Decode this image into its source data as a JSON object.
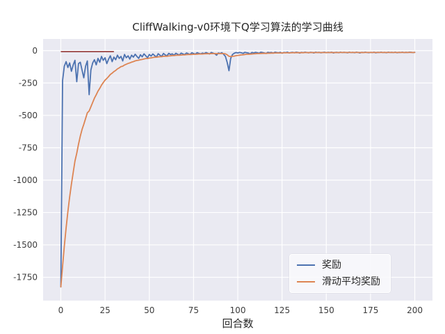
{
  "chart_data": {
    "type": "line",
    "title": "CliffWalking-v0环境下Q学习算法的学习曲线",
    "xlabel": "回合数",
    "ylabel": "",
    "grid": true,
    "background": "#eaeaf2",
    "gridline_color": "#ffffff",
    "legend_position": "lower right",
    "xticks": [
      0,
      25,
      50,
      75,
      100,
      125,
      150,
      175,
      200
    ],
    "yticks": [
      0,
      -250,
      -500,
      -750,
      -1000,
      -1250,
      -1500,
      -1750
    ],
    "xlim": [
      -10,
      210
    ],
    "ylim": [
      -1930,
      90
    ],
    "red_segment": {
      "color": "#8b2525",
      "x": [
        0,
        30
      ],
      "y": -8
    },
    "series": [
      {
        "name": "奖励",
        "color": "#4c72b0",
        "values": [
          -1824,
          -231,
          -120,
          -85,
          -130,
          -95,
          -160,
          -110,
          -75,
          -240,
          -100,
          -90,
          -150,
          -210,
          -120,
          -80,
          -340,
          -150,
          -95,
          -70,
          -110,
          -60,
          -90,
          -45,
          -75,
          -55,
          -100,
          -65,
          -40,
          -85,
          -50,
          -70,
          -35,
          -60,
          -45,
          -80,
          -30,
          -55,
          -40,
          -65,
          -35,
          -50,
          -28,
          -45,
          -60,
          -32,
          -48,
          -25,
          -40,
          -55,
          -30,
          -42,
          -26,
          -38,
          -50,
          -24,
          -35,
          -45,
          -22,
          -33,
          -40,
          -21,
          -30,
          -25,
          -36,
          -20,
          -28,
          -34,
          -19,
          -26,
          -31,
          -18,
          -24,
          -29,
          -17,
          -22,
          -27,
          -16,
          -21,
          -25,
          -19,
          -23,
          -15,
          -20,
          -26,
          -14,
          -19,
          -24,
          -35,
          -18,
          -22,
          -16,
          -28,
          -45,
          -90,
          -155,
          -60,
          -30,
          -20,
          -15,
          -18,
          -14,
          -17,
          -21,
          -13,
          -16,
          -19,
          -25,
          -14,
          -18,
          -13,
          -16,
          -20,
          -12,
          -15,
          -18,
          -22,
          -13,
          -16,
          -14,
          -19,
          -12,
          -15,
          -17,
          -13,
          -20,
          -14,
          -16,
          -12,
          -18,
          -15,
          -13,
          -17,
          -12,
          -14,
          -19,
          -13,
          -16,
          -12,
          -15,
          -17,
          -13,
          -14,
          -18,
          -12,
          -15,
          -13,
          -17,
          -14,
          -12,
          -16,
          -13,
          -15,
          -12,
          -18,
          -14,
          -13,
          -16,
          -12,
          -15,
          -13,
          -14,
          -17,
          -12,
          -15,
          -13,
          -16,
          -12,
          -14,
          -18,
          -13,
          -15,
          -12,
          -14,
          -16,
          -13,
          -15,
          -12,
          -17,
          -13,
          -14,
          -12,
          -15,
          -13,
          -16,
          -12,
          -14,
          -13,
          -15,
          -12,
          -16,
          -13,
          -14,
          -12,
          -15,
          -13,
          -14,
          -12,
          -13,
          -15,
          -13
        ]
      },
      {
        "name": "滑动平均奖励",
        "color": "#dd8452",
        "values": [
          -1824,
          -1665,
          -1510,
          -1368,
          -1244,
          -1129,
          -1032,
          -940,
          -853,
          -792,
          -723,
          -660,
          -609,
          -569,
          -524,
          -480,
          -466,
          -434,
          -400,
          -367,
          -341,
          -313,
          -291,
          -266,
          -247,
          -228,
          -215,
          -200,
          -184,
          -174,
          -162,
          -153,
          -141,
          -133,
          -124,
          -120,
          -111,
          -105,
          -99,
          -95,
          -89,
          -85,
          -79,
          -76,
          -74,
          -70,
          -68,
          -64,
          -61,
          -61,
          -58,
          -56,
          -53,
          -51,
          -51,
          -48,
          -47,
          -47,
          -44,
          -43,
          -43,
          -41,
          -40,
          -38,
          -38,
          -36,
          -35,
          -35,
          -34,
          -33,
          -33,
          -31,
          -30,
          -30,
          -29,
          -28,
          -28,
          -27,
          -26,
          -26,
          -26,
          -25,
          -24,
          -24,
          -24,
          -23,
          -23,
          -23,
          -24,
          -23,
          -23,
          -23,
          -23,
          -25,
          -32,
          -44,
          -46,
          -44,
          -42,
          -39,
          -37,
          -35,
          -33,
          -32,
          -30,
          -28,
          -28,
          -27,
          -26,
          -25,
          -24,
          -23,
          -23,
          -22,
          -21,
          -21,
          -21,
          -20,
          -20,
          -19,
          -19,
          -18,
          -18,
          -18,
          -18,
          -18,
          -17,
          -17,
          -17,
          -17,
          -17,
          -16,
          -16,
          -16,
          -16,
          -16,
          -16,
          -16,
          -15,
          -15,
          -16,
          -15,
          -15,
          -15,
          -15,
          -15,
          -15,
          -15,
          -15,
          -15,
          -15,
          -15,
          -15,
          -14,
          -15,
          -15,
          -15,
          -15,
          -14,
          -14,
          -14,
          -14,
          -15,
          -14,
          -14,
          -14,
          -14,
          -14,
          -14,
          -15,
          -14,
          -15,
          -14,
          -14,
          -14,
          -14,
          -14,
          -14,
          -14,
          -14,
          -14,
          -14,
          -14,
          -14,
          -14,
          -14,
          -14,
          -14,
          -14,
          -14,
          -14,
          -14,
          -14,
          -14,
          -14,
          -14,
          -14,
          -14,
          -14,
          -14,
          -14
        ]
      }
    ]
  }
}
